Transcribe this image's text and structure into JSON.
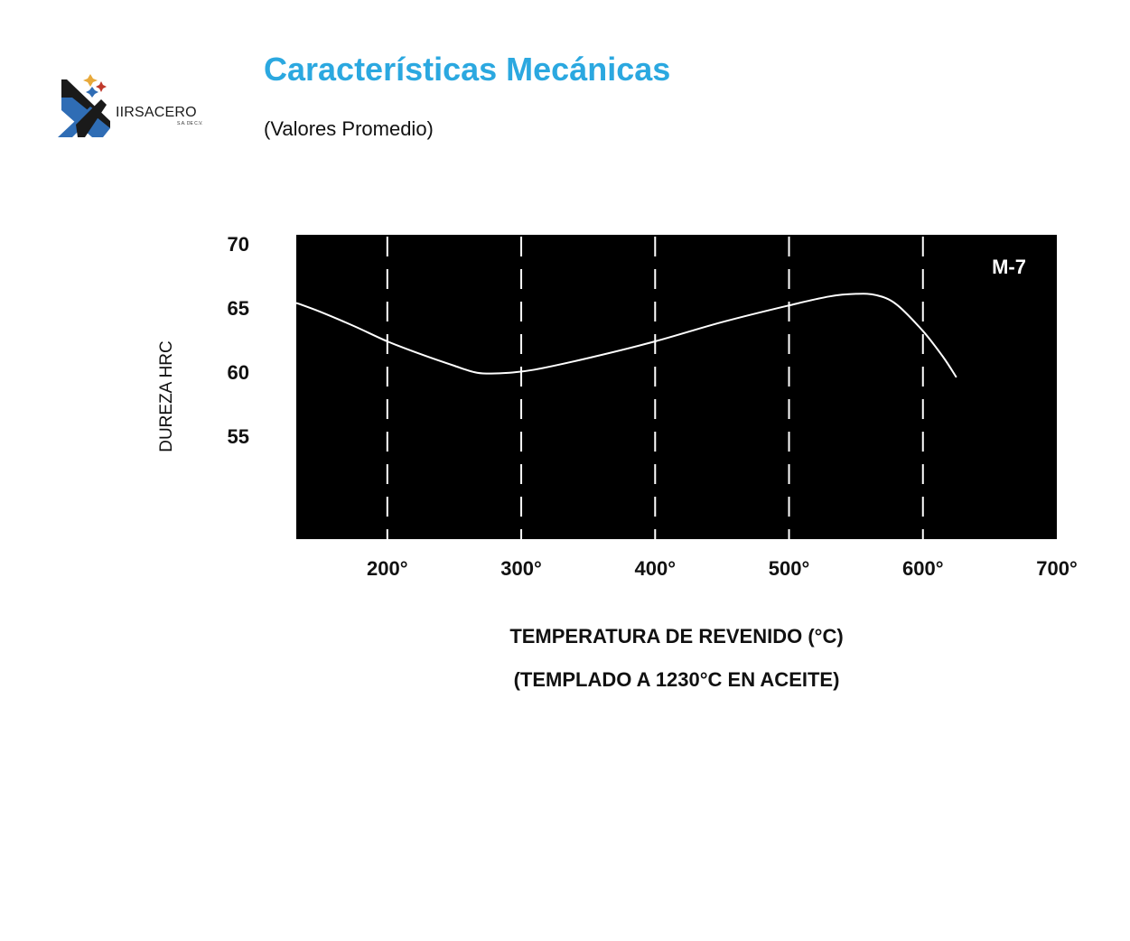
{
  "header": {
    "brand_name": "IIRSACERO",
    "brand_suffix": "S.A. DE C.V.",
    "title": "Características Mecánicas",
    "subtitle": "(Valores Promedio)"
  },
  "colors": {
    "title": "#2ba8e0",
    "plot_background": "#000000",
    "curve": "#ffffff",
    "grid": "#ffffff",
    "logo_blue": "#2f6db5",
    "logo_dark": "#1a1a1a",
    "logo_gold": "#e8a93a",
    "logo_red": "#c0392b"
  },
  "chart_data": {
    "type": "line",
    "title": "",
    "xlabel": "TEMPERATURA DE REVENIDO (°C)",
    "xlabel_note": "(TEMPLADO A 1230°C EN ACEITE)",
    "ylabel": "DUREZA HRC",
    "xlim": [
      132,
      700
    ],
    "ylim": [
      47,
      70.7
    ],
    "x_ticks": [
      200,
      300,
      400,
      500,
      600,
      700
    ],
    "x_tick_labels": [
      "200°",
      "300°",
      "400°",
      "500°",
      "600°",
      "700°"
    ],
    "y_ticks": [
      70,
      65,
      60,
      55
    ],
    "y_tick_labels": [
      "70",
      "65",
      "60",
      "55"
    ],
    "grid": "vertical dashed lines at 200°–600°",
    "series": [
      {
        "name": "M-7",
        "x": [
          132,
          150,
          175,
          200,
          225,
          250,
          265,
          275,
          290,
          310,
          350,
          400,
          450,
          500,
          530,
          550,
          565,
          580,
          600,
          615,
          625
        ],
        "y": [
          65.4,
          64.7,
          63.6,
          62.4,
          61.4,
          60.5,
          60.0,
          59.9,
          59.95,
          60.2,
          61.1,
          62.4,
          63.9,
          65.2,
          65.9,
          66.1,
          66.0,
          65.3,
          63.2,
          61.2,
          59.6
        ]
      }
    ]
  }
}
